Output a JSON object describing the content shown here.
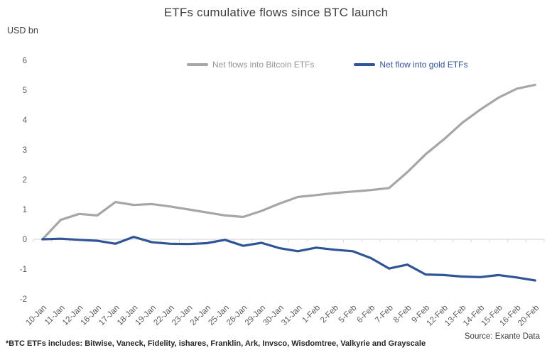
{
  "title": "ETFs cumulative flows since BTC launch",
  "y_axis_unit": "USD bn",
  "footnote": "*BTC ETFs includes: Bitwise, Vaneck, Fidelity, ishares, Franklin, Ark, Invsco, Wisdomtree, Valkyrie and Grayscale",
  "source": "Source: Exante Data",
  "colors": {
    "bitcoin_series": "#a6a6a6",
    "gold_series": "#2f5597",
    "axis_line": "#d9d9d9",
    "tick_label": "#595959",
    "title_text": "#3f3f3f",
    "legend_bitcoin_text": "#969696",
    "legend_gold_text": "#2f5597"
  },
  "legend": {
    "items": [
      {
        "label": "Net flows into Bitcoin ETFs",
        "color": "#a6a6a6"
      },
      {
        "label": "Net flow into gold ETFs",
        "color": "#2f5597"
      }
    ]
  },
  "chart_data": {
    "type": "line",
    "title": "ETFs cumulative flows since BTC launch",
    "xlabel": "",
    "ylabel": "USD bn",
    "ylim": [
      -2,
      6
    ],
    "y_ticks": [
      6,
      5,
      4,
      3,
      2,
      1,
      0,
      -1,
      -2
    ],
    "grid": false,
    "legend_position": "top",
    "categories": [
      "10-Jan",
      "11-Jan",
      "12-Jan",
      "16-Jan",
      "17-Jan",
      "18-Jan",
      "19-Jan",
      "22-Jan",
      "23-Jan",
      "24-Jan",
      "25-Jan",
      "26-Jan",
      "29-Jan",
      "30-Jan",
      "31-Jan",
      "1-Feb",
      "2-Feb",
      "5-Feb",
      "6-Feb",
      "7-Feb",
      "8-Feb",
      "9-Feb",
      "12-Feb",
      "13-Feb",
      "14-Feb",
      "15-Feb",
      "16-Feb",
      "20-Feb"
    ],
    "series": [
      {
        "name": "Net flows into Bitcoin ETFs",
        "color": "#a6a6a6",
        "values": [
          0,
          0.65,
          0.85,
          0.8,
          1.25,
          1.15,
          1.18,
          1.1,
          1.0,
          0.9,
          0.8,
          0.75,
          0.95,
          1.2,
          1.42,
          1.48,
          1.55,
          1.6,
          1.65,
          1.72,
          2.25,
          2.85,
          3.35,
          3.9,
          4.35,
          4.75,
          5.05,
          5.18
        ]
      },
      {
        "name": "Net flow into gold ETFs",
        "color": "#2f5597",
        "values": [
          0,
          0.02,
          -0.02,
          -0.05,
          -0.15,
          0.08,
          -0.1,
          -0.15,
          -0.16,
          -0.13,
          -0.02,
          -0.22,
          -0.12,
          -0.3,
          -0.4,
          -0.28,
          -0.35,
          -0.4,
          -0.63,
          -0.98,
          -0.85,
          -1.18,
          -1.2,
          -1.25,
          -1.27,
          -1.2,
          -1.28,
          -1.38
        ]
      }
    ]
  }
}
